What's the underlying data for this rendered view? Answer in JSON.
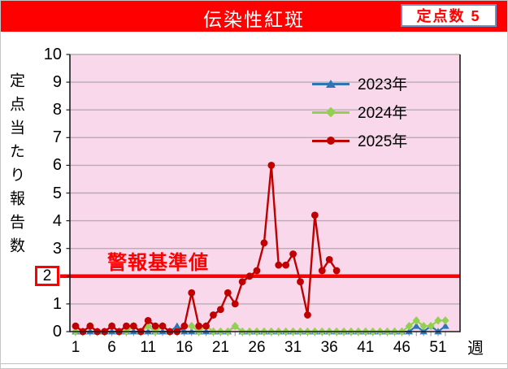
{
  "header": {
    "title": "伝染性紅斑",
    "badge": "定点数 5"
  },
  "colors": {
    "header_bg": "#FF0000",
    "alert_red": "#FF0000",
    "plot_bg": "#F9D8EB",
    "grid": "#B3AEB3",
    "axis": "#1A1A1A",
    "week_tick": "#8F8A99"
  },
  "chart_data": {
    "type": "line",
    "title": "伝染性紅斑",
    "xlabel": "週",
    "ylabel": "定点当たり報告数",
    "ylim": [
      0,
      10
    ],
    "y_ticks": [
      0,
      1,
      2,
      3,
      4,
      5,
      6,
      7,
      8,
      9,
      10
    ],
    "x_ticks": [
      1,
      6,
      11,
      16,
      21,
      26,
      31,
      36,
      41,
      46,
      51
    ],
    "weeks": 52,
    "grid": true,
    "legend_position": "top-right",
    "alert": {
      "label": "警報基準値",
      "value": 2,
      "boxed_y_tick": 2
    },
    "series": [
      {
        "name": "2023年",
        "color": "#2E75B6",
        "marker": "triangle",
        "values": [
          0,
          0,
          0,
          0,
          0,
          0,
          0,
          0,
          0,
          0,
          0,
          0,
          0,
          0,
          0.2,
          0,
          0,
          0,
          0,
          0,
          0,
          0,
          0.2,
          0,
          0,
          0,
          0,
          0,
          0,
          0,
          0,
          0,
          0,
          0,
          0,
          0,
          0,
          0,
          0,
          0,
          0,
          0,
          0,
          0,
          0,
          0,
          0,
          0.2,
          0,
          0.2,
          0,
          0.2
        ]
      },
      {
        "name": "2024年",
        "color": "#92D050",
        "marker": "diamond",
        "values": [
          0,
          0,
          0.2,
          0,
          0,
          0.2,
          0,
          0,
          0.2,
          0,
          0.2,
          0,
          0.2,
          0,
          0,
          0.2,
          0.2,
          0,
          0.2,
          0,
          0,
          0,
          0.2,
          0,
          0,
          0,
          0,
          0,
          0,
          0,
          0,
          0,
          0,
          0,
          0,
          0,
          0,
          0,
          0,
          0,
          0,
          0,
          0,
          0,
          0,
          0,
          0.2,
          0.4,
          0.2,
          0.2,
          0.4,
          0.4
        ]
      },
      {
        "name": "2025年",
        "color": "#C00000",
        "marker": "circle",
        "values": [
          0.2,
          0,
          0.2,
          0,
          0,
          0.2,
          0,
          0.2,
          0.2,
          0,
          0.4,
          0.2,
          0.2,
          0,
          0,
          0.2,
          1.4,
          0.2,
          0.2,
          0.6,
          0.8,
          1.4,
          1.0,
          1.8,
          2.0,
          2.2,
          3.2,
          6.0,
          2.4,
          2.4,
          2.8,
          1.8,
          0.6,
          4.2,
          2.2,
          2.6,
          2.2
        ]
      }
    ]
  }
}
